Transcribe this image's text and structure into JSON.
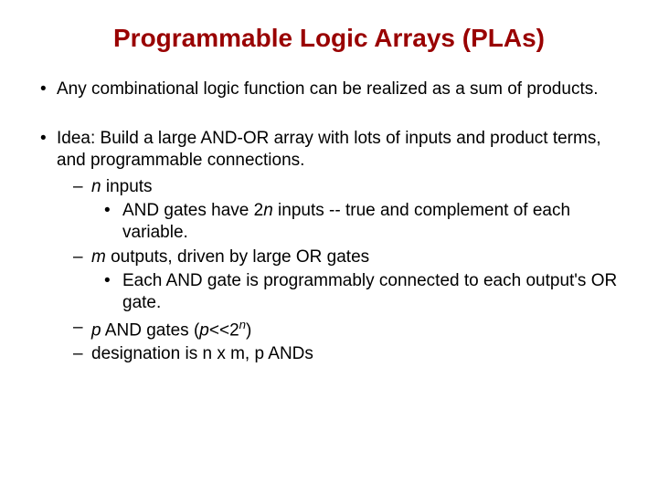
{
  "title_text": "Programmable Logic Arrays (PLAs)",
  "title_color": "#990000",
  "title_fontsize": 28,
  "body_fontsize": 19,
  "body_color": "#000000",
  "line_height": 1.28,
  "bullets": {
    "b1": "Any combinational logic function can be realized as a sum of products.",
    "b2": "Idea: Build a large AND-OR array with lots of inputs and product terms, and programmable connections.",
    "b2a_pre": "n",
    "b2a_post": " inputs",
    "b2a1_pre": "AND gates have 2",
    "b2a1_mid": "n",
    "b2a1_post": " inputs -- true and complement of each variable.",
    "b2b_pre": "m",
    "b2b_post": " outputs, driven by large OR gates",
    "b2b1": "Each AND gate is programmably connected to each output's OR gate.",
    "b2c_pre": "p",
    "b2c_mid1": " AND gates (",
    "b2c_mid2": "p",
    "b2c_mid3": "<<2",
    "b2c_sup": "n",
    "b2c_post": ")",
    "b2d": "designation is n x m, p ANDs"
  },
  "glyphs": {
    "dot": "•",
    "dash": "–"
  }
}
